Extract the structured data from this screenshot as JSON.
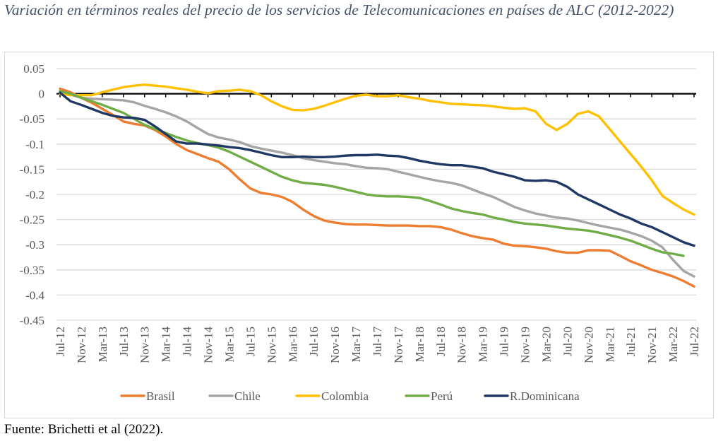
{
  "title": "Variación en términos reales del precio de los servicios de Telecomunicaciones en países de ALC (2012-2022)",
  "source": "Fuente: Brichetti et al (2022).",
  "chart_data": {
    "type": "line",
    "title": "Variación en términos reales del precio de los servicios de Telecomunicaciones en países de ALC (2012-2022)",
    "xlabel": "",
    "ylabel": "",
    "ylim": [
      -0.45,
      0.05
    ],
    "yticks": [
      0.05,
      0,
      -0.05,
      -0.1,
      -0.15,
      -0.2,
      -0.25,
      -0.3,
      -0.35,
      -0.4,
      -0.45
    ],
    "ytick_labels": [
      "0.05",
      "0",
      "-0.05",
      "-0.1",
      "-0.15",
      "-0.2",
      "-0.25",
      "-0.3",
      "-0.35",
      "-0.4",
      "-0.45"
    ],
    "grid": true,
    "legend": "bottom",
    "x_step_months": 2,
    "x_start": "Jul-12",
    "x_end": "Jul-22",
    "xtick_labels": [
      "Jul-12",
      "Nov-12",
      "Mar-13",
      "Jul-13",
      "Nov-13",
      "Mar-14",
      "Jul-14",
      "Nov-14",
      "Mar-15",
      "Jul-15",
      "Nov-15",
      "Mar-16",
      "Jul-16",
      "Nov-16",
      "Mar-17",
      "Jul-17",
      "Nov-17",
      "Mar-18",
      "Jul-18",
      "Nov-18",
      "Mar-19",
      "Jul-19",
      "Nov-19",
      "Mar-20",
      "Jul-20",
      "Nov-20",
      "Mar-21",
      "Jul-21",
      "Nov-21",
      "Mar-22",
      "Jul-22"
    ],
    "series": [
      {
        "name": "Brasil",
        "color": "#ed7d31",
        "values": [
          0.01,
          0.003,
          -0.008,
          -0.018,
          -0.03,
          -0.042,
          -0.055,
          -0.06,
          -0.063,
          -0.072,
          -0.085,
          -0.1,
          -0.112,
          -0.12,
          -0.128,
          -0.135,
          -0.15,
          -0.17,
          -0.188,
          -0.197,
          -0.2,
          -0.205,
          -0.215,
          -0.23,
          -0.243,
          -0.252,
          -0.256,
          -0.259,
          -0.26,
          -0.26,
          -0.261,
          -0.262,
          -0.262,
          -0.262,
          -0.263,
          -0.263,
          -0.265,
          -0.27,
          -0.277,
          -0.283,
          -0.287,
          -0.29,
          -0.298,
          -0.302,
          -0.303,
          -0.305,
          -0.308,
          -0.313,
          -0.316,
          -0.316,
          -0.311,
          -0.311,
          -0.312,
          -0.322,
          -0.333,
          -0.341,
          -0.35,
          -0.356,
          -0.363,
          -0.372,
          -0.383
        ]
      },
      {
        "name": "Chile",
        "color": "#a5a5a5",
        "values": [
          0.005,
          -0.002,
          -0.008,
          -0.01,
          -0.011,
          -0.012,
          -0.013,
          -0.017,
          -0.024,
          -0.03,
          -0.037,
          -0.045,
          -0.055,
          -0.068,
          -0.08,
          -0.087,
          -0.091,
          -0.096,
          -0.104,
          -0.109,
          -0.113,
          -0.117,
          -0.122,
          -0.128,
          -0.132,
          -0.135,
          -0.138,
          -0.14,
          -0.144,
          -0.147,
          -0.148,
          -0.15,
          -0.155,
          -0.16,
          -0.165,
          -0.17,
          -0.174,
          -0.177,
          -0.182,
          -0.19,
          -0.198,
          -0.205,
          -0.215,
          -0.225,
          -0.232,
          -0.238,
          -0.242,
          -0.246,
          -0.248,
          -0.252,
          -0.257,
          -0.262,
          -0.266,
          -0.27,
          -0.276,
          -0.283,
          -0.292,
          -0.305,
          -0.33,
          -0.352,
          -0.363
        ]
      },
      {
        "name": "Colombia",
        "color": "#ffc000",
        "values": [
          0.0,
          -0.003,
          -0.003,
          -0.003,
          0.003,
          0.008,
          0.013,
          0.016,
          0.018,
          0.016,
          0.014,
          0.011,
          0.008,
          0.004,
          0.001,
          0.005,
          0.006,
          0.008,
          0.005,
          -0.003,
          -0.015,
          -0.025,
          -0.032,
          -0.033,
          -0.03,
          -0.024,
          -0.017,
          -0.01,
          -0.004,
          -0.002,
          -0.005,
          -0.005,
          -0.003,
          -0.007,
          -0.01,
          -0.014,
          -0.017,
          -0.02,
          -0.021,
          -0.022,
          -0.023,
          -0.025,
          -0.028,
          -0.03,
          -0.029,
          -0.035,
          -0.06,
          -0.072,
          -0.06,
          -0.04,
          -0.035,
          -0.045,
          -0.07,
          -0.095,
          -0.12,
          -0.145,
          -0.172,
          -0.203,
          -0.217,
          -0.23,
          -0.24
        ]
      },
      {
        "name": "Perú",
        "color": "#70ad47",
        "values": [
          0.005,
          0.0,
          -0.008,
          -0.015,
          -0.022,
          -0.03,
          -0.038,
          -0.05,
          -0.062,
          -0.07,
          -0.078,
          -0.086,
          -0.093,
          -0.098,
          -0.102,
          -0.107,
          -0.115,
          -0.125,
          -0.135,
          -0.145,
          -0.155,
          -0.165,
          -0.172,
          -0.177,
          -0.179,
          -0.181,
          -0.185,
          -0.19,
          -0.195,
          -0.2,
          -0.203,
          -0.204,
          -0.204,
          -0.205,
          -0.207,
          -0.213,
          -0.22,
          -0.228,
          -0.233,
          -0.237,
          -0.24,
          -0.246,
          -0.25,
          -0.255,
          -0.258,
          -0.26,
          -0.262,
          -0.265,
          -0.268,
          -0.27,
          -0.272,
          -0.276,
          -0.281,
          -0.286,
          -0.292,
          -0.3,
          -0.308,
          -0.315,
          -0.318,
          -0.322,
          null
        ]
      },
      {
        "name": "R.Dominicana",
        "color": "#203864",
        "values": [
          0.002,
          -0.015,
          -0.022,
          -0.03,
          -0.038,
          -0.044,
          -0.047,
          -0.048,
          -0.052,
          -0.065,
          -0.08,
          -0.095,
          -0.099,
          -0.099,
          -0.101,
          -0.103,
          -0.106,
          -0.108,
          -0.112,
          -0.117,
          -0.122,
          -0.126,
          -0.126,
          -0.125,
          -0.126,
          -0.126,
          -0.125,
          -0.123,
          -0.122,
          -0.122,
          -0.121,
          -0.123,
          -0.124,
          -0.128,
          -0.133,
          -0.137,
          -0.14,
          -0.142,
          -0.142,
          -0.145,
          -0.148,
          -0.155,
          -0.16,
          -0.165,
          -0.172,
          -0.173,
          -0.172,
          -0.175,
          -0.185,
          -0.2,
          -0.21,
          -0.22,
          -0.23,
          -0.24,
          -0.248,
          -0.258,
          -0.265,
          -0.275,
          -0.285,
          -0.295,
          -0.302
        ]
      }
    ]
  }
}
